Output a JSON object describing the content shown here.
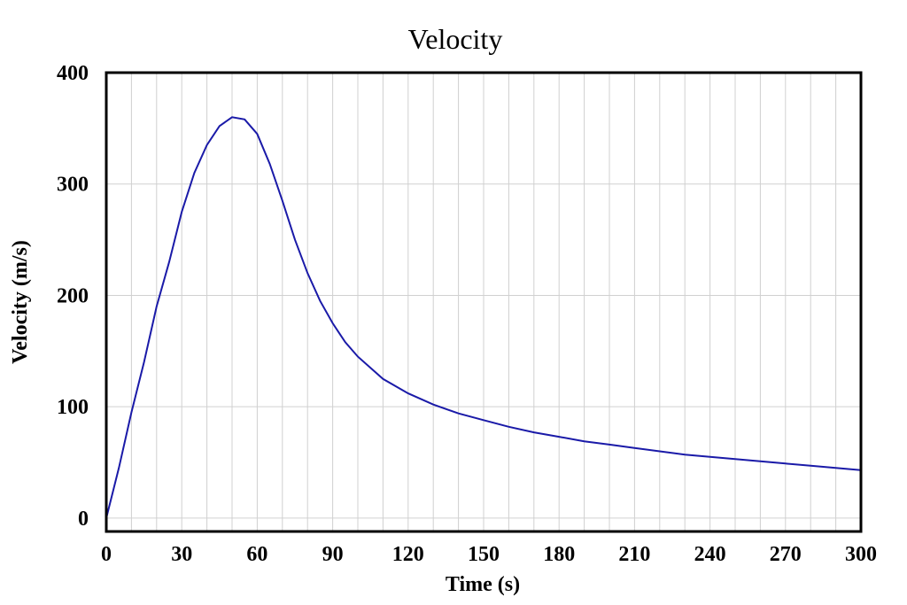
{
  "chart_data": {
    "type": "line",
    "title": "Velocity",
    "xlabel": "Time (s)",
    "ylabel": "Velocity (m/s)",
    "xlim": [
      0,
      300
    ],
    "ylim": [
      -12,
      400
    ],
    "x_ticks": [
      0,
      30,
      60,
      90,
      120,
      150,
      180,
      210,
      240,
      270,
      300
    ],
    "y_ticks": [
      0,
      100,
      200,
      300,
      400
    ],
    "grid": true,
    "colors": {
      "series": "#1a1aa8",
      "grid": "#d0d0d0",
      "frame": "#000000"
    },
    "series": [
      {
        "x": [
          0,
          5,
          10,
          15,
          20,
          25,
          30,
          35,
          40,
          45,
          50,
          55,
          60,
          65,
          70,
          75,
          80,
          85,
          90,
          95,
          100,
          110,
          120,
          130,
          140,
          150,
          160,
          170,
          180,
          190,
          200,
          210,
          220,
          230,
          240,
          250,
          260,
          270,
          280,
          290,
          300
        ],
        "y": [
          0,
          45,
          95,
          140,
          190,
          230,
          275,
          310,
          335,
          352,
          360,
          358,
          345,
          318,
          285,
          250,
          220,
          195,
          175,
          158,
          145,
          125,
          112,
          102,
          94,
          88,
          82,
          77,
          73,
          69,
          66,
          63,
          60,
          57,
          55,
          53,
          51,
          49,
          47,
          45,
          43
        ]
      }
    ]
  }
}
